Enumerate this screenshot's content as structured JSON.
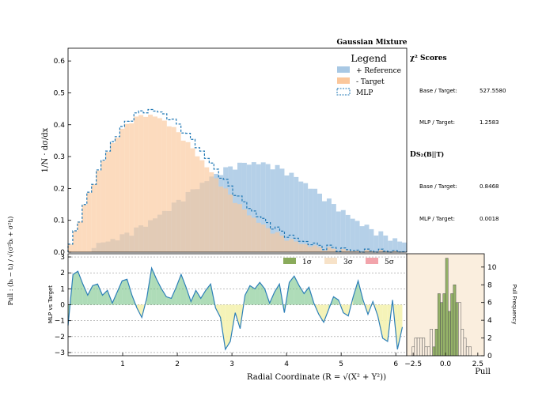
{
  "title": "Gaussian Mixture",
  "colors": {
    "reference": "#a8c8e4",
    "target": "#fbc79b",
    "mlp": "#1f77b4",
    "sig1": "#8aab5b",
    "sig3": "#f7e2c8",
    "sig5": "#f2a4ab",
    "pull_pos": "#6bbf7e",
    "pull_neg": "#f4f2b0"
  },
  "chart_data": [
    {
      "type": "bar",
      "name": "main-histogram",
      "ylabel": "1/N · dσ/dx",
      "xlim": [
        0.0,
        6.2
      ],
      "ylim": [
        0.0,
        0.64
      ],
      "yticks": [
        "0.0",
        "0.1",
        "0.2",
        "0.3",
        "0.4",
        "0.5",
        "0.6"
      ],
      "ytick_values": [
        0.0,
        0.1,
        0.2,
        0.3,
        0.4,
        0.5,
        0.6
      ],
      "legend": {
        "title": "Legend",
        "entries": [
          "+ Reference",
          "- Target",
          "MLP"
        ],
        "placement": "top-right"
      },
      "series": [
        {
          "name": "+ Reference",
          "kind": "reference",
          "mean": 3.4,
          "sigma": 1.3,
          "peak": 0.28
        },
        {
          "name": "- Target",
          "kind": "target",
          "mode": 1.45,
          "peak": 0.43
        },
        {
          "name": "MLP",
          "kind": "mlp",
          "mode": 1.5,
          "peak": 0.445
        }
      ]
    },
    {
      "type": "line",
      "name": "pull-plot",
      "ylabel": "Pull : (bᵢ − tᵢ) / √(σ²bᵢ + σ²tᵢ)",
      "inner_label": "MLP vs Target",
      "xlabel": "Radial Coordinate (R = √(X² + Y²))",
      "xlim": [
        0.0,
        6.2
      ],
      "ylim": [
        -3.2,
        3.2
      ],
      "xticks": [
        "1",
        "2",
        "3",
        "4",
        "5",
        "6"
      ],
      "xtick_values": [
        1,
        2,
        3,
        4,
        5,
        6
      ],
      "yticks": [
        "−3",
        "−2",
        "−1",
        "0",
        "1",
        "2",
        "3"
      ],
      "ytick_values": [
        -3,
        -2,
        -1,
        0,
        1,
        2,
        3
      ],
      "bands_legend": [
        "1σ",
        "3σ",
        "5σ"
      ],
      "x": [
        0.0,
        0.09,
        0.18,
        0.27,
        0.36,
        0.45,
        0.54,
        0.63,
        0.72,
        0.81,
        0.9,
        0.99,
        1.08,
        1.17,
        1.26,
        1.35,
        1.44,
        1.53,
        1.62,
        1.71,
        1.8,
        1.89,
        1.98,
        2.07,
        2.16,
        2.25,
        2.34,
        2.43,
        2.52,
        2.61,
        2.7,
        2.79,
        2.88,
        2.97,
        3.06,
        3.15,
        3.24,
        3.33,
        3.42,
        3.51,
        3.6,
        3.69,
        3.78,
        3.87,
        3.96,
        4.05,
        4.14,
        4.23,
        4.32,
        4.41,
        4.5,
        4.59,
        4.68,
        4.77,
        4.86,
        4.95,
        5.04,
        5.13,
        5.22,
        5.31,
        5.4,
        5.49,
        5.58,
        5.67,
        5.76,
        5.85,
        5.94,
        6.03,
        6.12
      ],
      "values": [
        -1.3,
        1.9,
        2.1,
        1.3,
        0.6,
        1.2,
        1.3,
        0.6,
        0.9,
        0.1,
        0.8,
        1.5,
        1.6,
        0.6,
        -0.2,
        -0.8,
        0.4,
        2.3,
        1.6,
        1.0,
        0.5,
        0.4,
        1.1,
        1.9,
        1.1,
        0.2,
        0.9,
        0.4,
        0.9,
        1.3,
        -0.2,
        -0.8,
        -2.8,
        -2.3,
        -0.5,
        -1.5,
        0.6,
        1.2,
        1.0,
        1.4,
        1.0,
        0.1,
        0.8,
        1.3,
        -0.5,
        1.4,
        1.8,
        1.2,
        0.7,
        1.1,
        0.1,
        -0.6,
        -1.1,
        -0.3,
        0.5,
        0.3,
        -0.5,
        -0.7,
        0.5,
        1.5,
        0.3,
        -0.6,
        0.2,
        -0.7,
        -2.1,
        -2.3,
        0.3,
        -2.8,
        -1.4
      ]
    },
    {
      "type": "bar",
      "name": "pull-histogram",
      "xlabel": "Pull",
      "ylabel": "Pull Frequency",
      "xlim": [
        -3.0,
        3.0
      ],
      "ylim": [
        0,
        11.5
      ],
      "xticks": [
        "−2.5",
        "0.0",
        "2.5"
      ],
      "xtick_values": [
        -2.5,
        0.0,
        2.5
      ],
      "yticks": [
        "0",
        "2",
        "4",
        "6",
        "8",
        "10"
      ],
      "ytick_values": [
        0,
        2,
        4,
        6,
        8,
        10
      ],
      "bin_edges": [
        -2.6,
        -2.4,
        -2.2,
        -2.0,
        -1.8,
        -1.6,
        -1.4,
        -1.2,
        -1.0,
        -0.8,
        -0.6,
        -0.4,
        -0.2,
        0.0,
        0.2,
        0.4,
        0.6,
        0.8,
        1.0,
        1.2,
        1.4,
        1.6,
        1.8,
        2.0
      ],
      "counts": [
        1,
        2,
        2,
        2,
        2,
        1,
        1,
        3,
        1,
        3,
        7,
        6,
        7,
        11,
        5,
        7,
        8,
        6,
        6,
        3,
        2,
        1,
        1
      ]
    }
  ],
  "scores": {
    "chi2_title": "χ² Scores",
    "chi2_base_label": "Base / Target:",
    "chi2_base_value": "527.5580",
    "chi2_mlp_label": "MLP / Target:",
    "chi2_mlp_value": "1.2583",
    "dsk_title": "D",
    "dsk_sub": "S₂(B||T)",
    "dsk_base_label": "Base / Target:",
    "dsk_base_value": "0.8468",
    "dsk_mlp_label": "MLP / Target:",
    "dsk_mlp_value": "0.0018"
  }
}
